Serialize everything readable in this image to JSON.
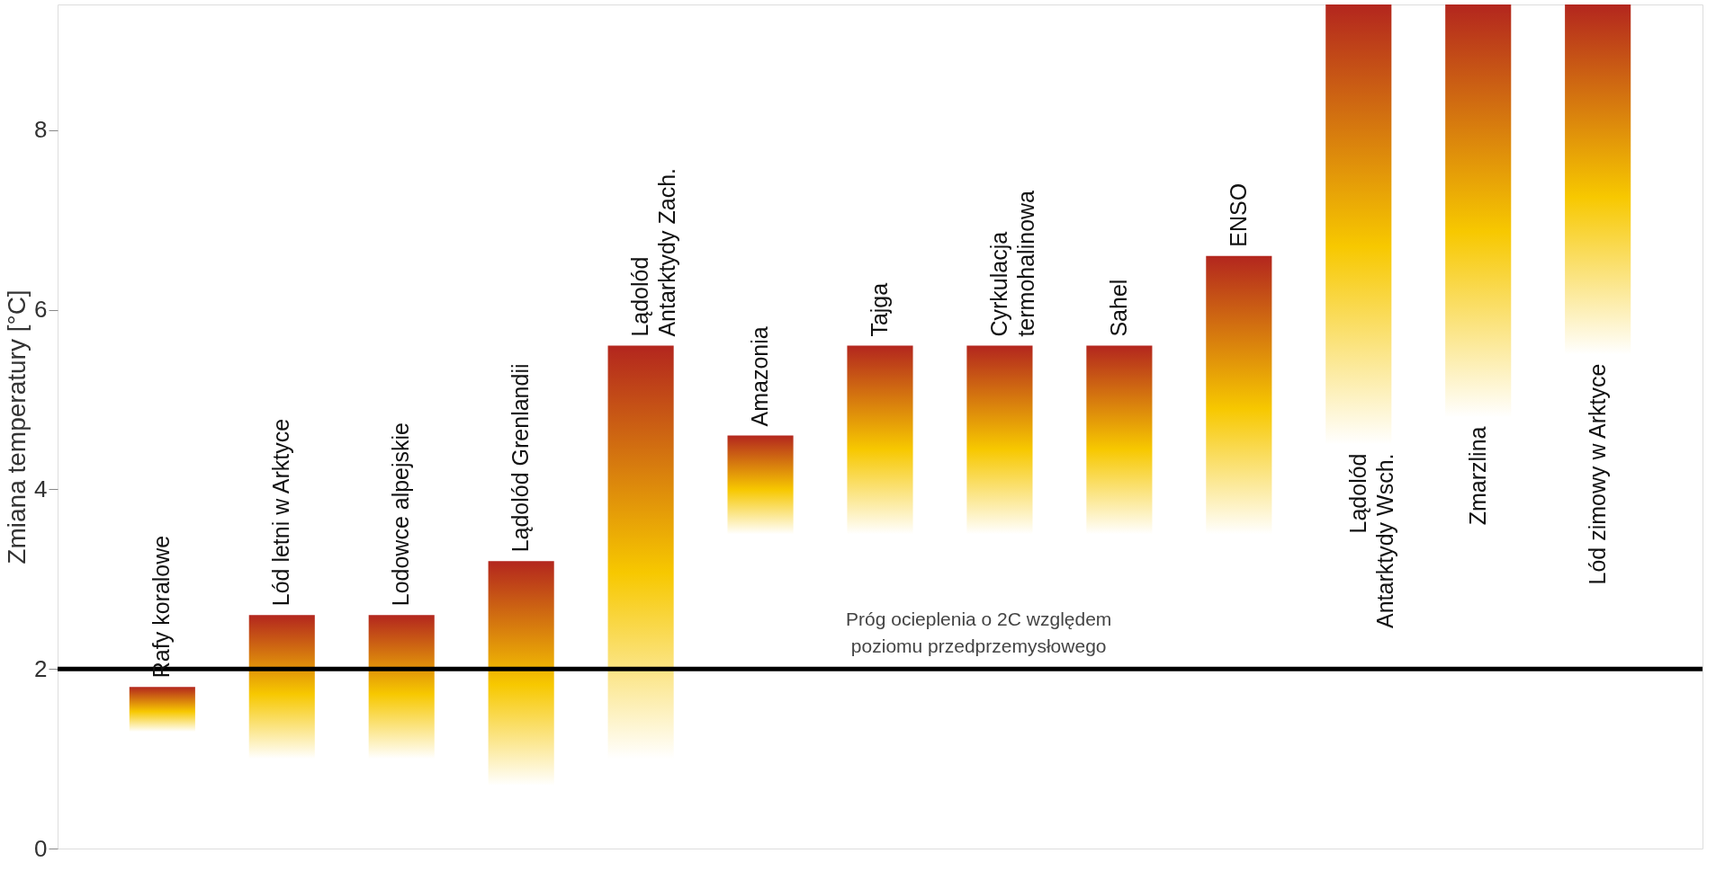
{
  "chart_data": {
    "type": "bar",
    "ylabel": "Zmiana temperatury [°C]",
    "categories": [
      "Rafy koralowe",
      "Lód letni w Arktyce",
      "Lodowce alpejskie",
      "Lądolód Grenlandii",
      "Lądolód\nAntarktydy Zach.",
      "Amazonia",
      "Tajga",
      "Cyrkulacja\ntermohalinowa",
      "Sahel",
      "ENSO",
      "Lądolód\nAntarktydy Wsch.",
      "Zmarzlina",
      "Lód zimowy w Arktyce"
    ],
    "base": [
      1.3,
      1.0,
      1.0,
      0.7,
      1.0,
      3.5,
      3.5,
      3.5,
      3.5,
      3.5,
      4.5,
      4.8,
      5.5
    ],
    "values": [
      0.5,
      1.6,
      1.6,
      2.5,
      4.6,
      1.1,
      2.1,
      2.1,
      2.1,
      3.1,
      4.9,
      4.6,
      3.9
    ],
    "color": "#f7c800",
    "ylim": [
      0,
      9.4
    ],
    "yticks": [
      0,
      2,
      4,
      6,
      8
    ],
    "grid": false,
    "tick_labels": "y",
    "ref_lines": [
      {
        "axis": "y",
        "value": 2,
        "label": "Próg ocieplenia o 2C względem\npoziomu przedprzemysłowego",
        "color": "#000000"
      }
    ]
  }
}
